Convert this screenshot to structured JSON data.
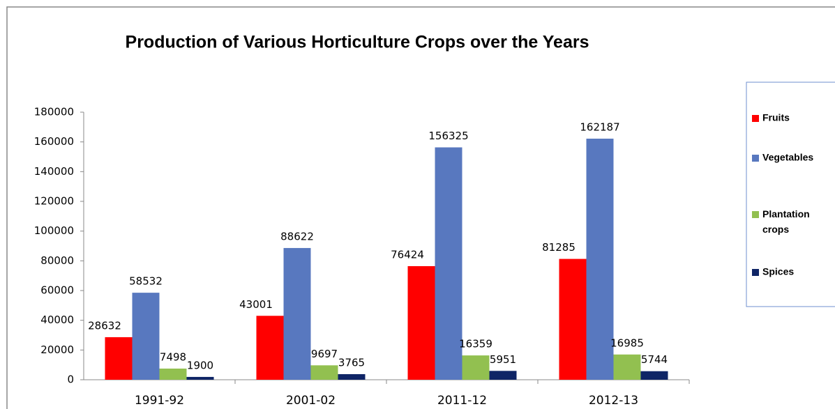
{
  "chart_data": {
    "type": "bar",
    "title": "Production of Various Horticulture Crops over the Years",
    "categories": [
      "1991-92",
      "2001-02",
      "2011-12",
      "2012-13"
    ],
    "series": [
      {
        "name": "Fruits",
        "color": "#ff0000",
        "values": [
          28632,
          43001,
          76424,
          81285
        ]
      },
      {
        "name": "Vegetables",
        "color": "#5878bf",
        "values": [
          58532,
          88622,
          156325,
          162187
        ]
      },
      {
        "name": "Plantation crops",
        "color": "#92c050",
        "values": [
          7498,
          9697,
          16359,
          16985
        ]
      },
      {
        "name": "Spices",
        "color": "#0f2566",
        "values": [
          1900,
          3765,
          5951,
          5744
        ]
      }
    ],
    "ylim": [
      0,
      180000
    ],
    "yticks": [
      0,
      20000,
      40000,
      60000,
      80000,
      100000,
      120000,
      140000,
      160000,
      180000
    ],
    "legend": "right"
  }
}
